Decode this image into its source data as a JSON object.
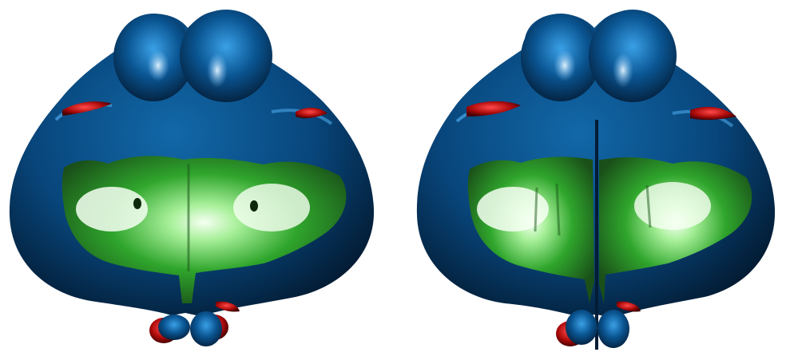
{
  "figure": {
    "panels": [
      {
        "id": "left",
        "surfaces": [
          "blue-surface",
          "green-surface",
          "red-surface"
        ]
      },
      {
        "id": "right",
        "surfaces": [
          "blue-surface",
          "green-surface",
          "red-surface"
        ]
      }
    ]
  },
  "colors": {
    "background": "#ffffff",
    "blue_dark": "#04203f",
    "blue_mid": "#0a4f86",
    "blue_light": "#7fc6ff",
    "green_dark": "#1c5a1b",
    "green_mid": "#2fa52c",
    "green_light": "#f2fff0",
    "red_dark": "#5e0000",
    "red_mid": "#c01010"
  }
}
